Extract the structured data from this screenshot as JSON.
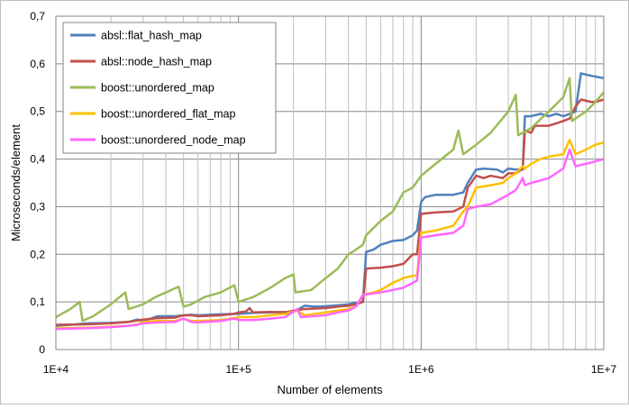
{
  "chart_data": {
    "type": "line",
    "title": "",
    "xlabel": "Number of elements",
    "ylabel": "Microseconds/element",
    "x_scale": "log",
    "xlim": [
      10000,
      10000000
    ],
    "ylim": [
      0,
      0.7
    ],
    "x_ticks": [
      {
        "value": 10000,
        "label": "1E+4"
      },
      {
        "value": 100000,
        "label": "1E+5"
      },
      {
        "value": 1000000,
        "label": "1E+6"
      },
      {
        "value": 10000000,
        "label": "1E+7"
      }
    ],
    "y_ticks": [
      {
        "value": 0,
        "label": "0"
      },
      {
        "value": 0.1,
        "label": "0,1"
      },
      {
        "value": 0.2,
        "label": "0,2"
      },
      {
        "value": 0.3,
        "label": "0,3"
      },
      {
        "value": 0.4,
        "label": "0,4"
      },
      {
        "value": 0.5,
        "label": "0,5"
      },
      {
        "value": 0.6,
        "label": "0,6"
      },
      {
        "value": 0.7,
        "label": "0,7"
      }
    ],
    "grid": true,
    "legend_position": "top-left",
    "series": [
      {
        "name": "absl::flat_hash_map",
        "color": "#4f81bd",
        "points": [
          [
            10000,
            0.05
          ],
          [
            12000,
            0.052
          ],
          [
            15000,
            0.055
          ],
          [
            20000,
            0.056
          ],
          [
            25000,
            0.058
          ],
          [
            28000,
            0.063
          ],
          [
            30000,
            0.06
          ],
          [
            33000,
            0.065
          ],
          [
            36000,
            0.07
          ],
          [
            45000,
            0.07
          ],
          [
            50000,
            0.072
          ],
          [
            55000,
            0.073
          ],
          [
            60000,
            0.072
          ],
          [
            70000,
            0.073
          ],
          [
            80000,
            0.074
          ],
          [
            100000,
            0.075
          ],
          [
            120000,
            0.077
          ],
          [
            150000,
            0.078
          ],
          [
            190000,
            0.079
          ],
          [
            210000,
            0.083
          ],
          [
            230000,
            0.092
          ],
          [
            260000,
            0.09
          ],
          [
            300000,
            0.091
          ],
          [
            350000,
            0.093
          ],
          [
            400000,
            0.095
          ],
          [
            440000,
            0.098
          ],
          [
            480000,
            0.1
          ],
          [
            500000,
            0.205
          ],
          [
            550000,
            0.21
          ],
          [
            600000,
            0.22
          ],
          [
            700000,
            0.228
          ],
          [
            800000,
            0.23
          ],
          [
            900000,
            0.24
          ],
          [
            950000,
            0.25
          ],
          [
            1000000,
            0.31
          ],
          [
            1050000,
            0.32
          ],
          [
            1200000,
            0.325
          ],
          [
            1500000,
            0.325
          ],
          [
            1700000,
            0.33
          ],
          [
            1800000,
            0.35
          ],
          [
            2000000,
            0.378
          ],
          [
            2200000,
            0.38
          ],
          [
            2600000,
            0.378
          ],
          [
            2800000,
            0.372
          ],
          [
            3000000,
            0.38
          ],
          [
            3300000,
            0.378
          ],
          [
            3600000,
            0.378
          ],
          [
            3700000,
            0.49
          ],
          [
            4000000,
            0.49
          ],
          [
            4500000,
            0.495
          ],
          [
            5000000,
            0.49
          ],
          [
            5500000,
            0.495
          ],
          [
            6000000,
            0.49
          ],
          [
            6500000,
            0.495
          ],
          [
            7000000,
            0.5
          ],
          [
            7500000,
            0.58
          ],
          [
            8500000,
            0.575
          ],
          [
            10000000,
            0.57
          ]
        ]
      },
      {
        "name": "absl::node_hash_map",
        "color": "#c0504d",
        "points": [
          [
            10000,
            0.052
          ],
          [
            15000,
            0.053
          ],
          [
            20000,
            0.055
          ],
          [
            25000,
            0.058
          ],
          [
            30000,
            0.063
          ],
          [
            36000,
            0.066
          ],
          [
            45000,
            0.067
          ],
          [
            50000,
            0.072
          ],
          [
            55000,
            0.072
          ],
          [
            60000,
            0.07
          ],
          [
            80000,
            0.072
          ],
          [
            95000,
            0.075
          ],
          [
            100000,
            0.078
          ],
          [
            110000,
            0.08
          ],
          [
            115000,
            0.087
          ],
          [
            120000,
            0.078
          ],
          [
            150000,
            0.079
          ],
          [
            180000,
            0.078
          ],
          [
            210000,
            0.083
          ],
          [
            230000,
            0.085
          ],
          [
            300000,
            0.087
          ],
          [
            350000,
            0.09
          ],
          [
            400000,
            0.092
          ],
          [
            440000,
            0.095
          ],
          [
            480000,
            0.1
          ],
          [
            500000,
            0.17
          ],
          [
            600000,
            0.172
          ],
          [
            700000,
            0.175
          ],
          [
            800000,
            0.18
          ],
          [
            900000,
            0.2
          ],
          [
            950000,
            0.2
          ],
          [
            1000000,
            0.285
          ],
          [
            1200000,
            0.288
          ],
          [
            1500000,
            0.29
          ],
          [
            1700000,
            0.3
          ],
          [
            1800000,
            0.34
          ],
          [
            2000000,
            0.365
          ],
          [
            2200000,
            0.36
          ],
          [
            2400000,
            0.365
          ],
          [
            2800000,
            0.36
          ],
          [
            3000000,
            0.37
          ],
          [
            3300000,
            0.37
          ],
          [
            3600000,
            0.38
          ],
          [
            3700000,
            0.46
          ],
          [
            4000000,
            0.455
          ],
          [
            4200000,
            0.47
          ],
          [
            5000000,
            0.47
          ],
          [
            5500000,
            0.475
          ],
          [
            6000000,
            0.48
          ],
          [
            6500000,
            0.485
          ],
          [
            7000000,
            0.51
          ],
          [
            7500000,
            0.525
          ],
          [
            8500000,
            0.52
          ],
          [
            9000000,
            0.52
          ],
          [
            10000000,
            0.525
          ]
        ]
      },
      {
        "name": "boost::unordered_map",
        "color": "#9bbb59",
        "points": [
          [
            10000,
            0.068
          ],
          [
            12000,
            0.085
          ],
          [
            13500,
            0.1
          ],
          [
            14000,
            0.06
          ],
          [
            16000,
            0.07
          ],
          [
            20000,
            0.095
          ],
          [
            24000,
            0.12
          ],
          [
            25000,
            0.085
          ],
          [
            30000,
            0.095
          ],
          [
            35000,
            0.11
          ],
          [
            40000,
            0.12
          ],
          [
            47000,
            0.132
          ],
          [
            50000,
            0.09
          ],
          [
            55000,
            0.095
          ],
          [
            65000,
            0.11
          ],
          [
            80000,
            0.12
          ],
          [
            95000,
            0.135
          ],
          [
            100000,
            0.1
          ],
          [
            120000,
            0.11
          ],
          [
            150000,
            0.13
          ],
          [
            180000,
            0.15
          ],
          [
            200000,
            0.158
          ],
          [
            205000,
            0.12
          ],
          [
            250000,
            0.125
          ],
          [
            300000,
            0.15
          ],
          [
            350000,
            0.17
          ],
          [
            400000,
            0.2
          ],
          [
            440000,
            0.21
          ],
          [
            480000,
            0.22
          ],
          [
            500000,
            0.24
          ],
          [
            600000,
            0.27
          ],
          [
            700000,
            0.29
          ],
          [
            800000,
            0.33
          ],
          [
            900000,
            0.34
          ],
          [
            1000000,
            0.365
          ],
          [
            1200000,
            0.39
          ],
          [
            1500000,
            0.42
          ],
          [
            1600000,
            0.46
          ],
          [
            1700000,
            0.41
          ],
          [
            2000000,
            0.43
          ],
          [
            2400000,
            0.455
          ],
          [
            3000000,
            0.5
          ],
          [
            3300000,
            0.535
          ],
          [
            3400000,
            0.45
          ],
          [
            4000000,
            0.465
          ],
          [
            5000000,
            0.5
          ],
          [
            6000000,
            0.53
          ],
          [
            6500000,
            0.57
          ],
          [
            6700000,
            0.48
          ],
          [
            7000000,
            0.485
          ],
          [
            8000000,
            0.5
          ],
          [
            9000000,
            0.52
          ],
          [
            10000000,
            0.54
          ]
        ]
      },
      {
        "name": "boost::unordered_flat_map",
        "color": "#ffc000",
        "points": [
          [
            10000,
            0.045
          ],
          [
            15000,
            0.046
          ],
          [
            20000,
            0.048
          ],
          [
            25000,
            0.05
          ],
          [
            28000,
            0.053
          ],
          [
            30000,
            0.058
          ],
          [
            36000,
            0.06
          ],
          [
            45000,
            0.06
          ],
          [
            50000,
            0.065
          ],
          [
            55000,
            0.06
          ],
          [
            60000,
            0.06
          ],
          [
            80000,
            0.062
          ],
          [
            95000,
            0.066
          ],
          [
            100000,
            0.068
          ],
          [
            120000,
            0.068
          ],
          [
            150000,
            0.072
          ],
          [
            180000,
            0.075
          ],
          [
            210000,
            0.082
          ],
          [
            230000,
            0.072
          ],
          [
            300000,
            0.078
          ],
          [
            350000,
            0.082
          ],
          [
            400000,
            0.085
          ],
          [
            440000,
            0.09
          ],
          [
            480000,
            0.115
          ],
          [
            550000,
            0.12
          ],
          [
            600000,
            0.125
          ],
          [
            700000,
            0.14
          ],
          [
            800000,
            0.15
          ],
          [
            900000,
            0.155
          ],
          [
            950000,
            0.155
          ],
          [
            1000000,
            0.245
          ],
          [
            1200000,
            0.25
          ],
          [
            1500000,
            0.26
          ],
          [
            1700000,
            0.29
          ],
          [
            1800000,
            0.3
          ],
          [
            2000000,
            0.34
          ],
          [
            2400000,
            0.345
          ],
          [
            2800000,
            0.35
          ],
          [
            3000000,
            0.36
          ],
          [
            3300000,
            0.37
          ],
          [
            3600000,
            0.385
          ],
          [
            3700000,
            0.38
          ],
          [
            4000000,
            0.39
          ],
          [
            4500000,
            0.4
          ],
          [
            5000000,
            0.405
          ],
          [
            6000000,
            0.41
          ],
          [
            6500000,
            0.44
          ],
          [
            7000000,
            0.41
          ],
          [
            8000000,
            0.42
          ],
          [
            9000000,
            0.43
          ],
          [
            10000000,
            0.435
          ]
        ]
      },
      {
        "name": "boost::unordered_node_map",
        "color": "#ff66ff",
        "points": [
          [
            10000,
            0.043
          ],
          [
            15000,
            0.045
          ],
          [
            20000,
            0.047
          ],
          [
            25000,
            0.05
          ],
          [
            28000,
            0.052
          ],
          [
            30000,
            0.055
          ],
          [
            36000,
            0.057
          ],
          [
            45000,
            0.058
          ],
          [
            50000,
            0.065
          ],
          [
            55000,
            0.058
          ],
          [
            60000,
            0.057
          ],
          [
            80000,
            0.06
          ],
          [
            95000,
            0.065
          ],
          [
            100000,
            0.062
          ],
          [
            120000,
            0.062
          ],
          [
            150000,
            0.065
          ],
          [
            180000,
            0.068
          ],
          [
            210000,
            0.085
          ],
          [
            220000,
            0.068
          ],
          [
            300000,
            0.072
          ],
          [
            350000,
            0.078
          ],
          [
            400000,
            0.082
          ],
          [
            440000,
            0.09
          ],
          [
            480000,
            0.115
          ],
          [
            550000,
            0.118
          ],
          [
            600000,
            0.12
          ],
          [
            700000,
            0.125
          ],
          [
            800000,
            0.13
          ],
          [
            900000,
            0.14
          ],
          [
            950000,
            0.145
          ],
          [
            1000000,
            0.235
          ],
          [
            1200000,
            0.24
          ],
          [
            1500000,
            0.245
          ],
          [
            1700000,
            0.26
          ],
          [
            1800000,
            0.295
          ],
          [
            2000000,
            0.3
          ],
          [
            2400000,
            0.305
          ],
          [
            3000000,
            0.325
          ],
          [
            3300000,
            0.335
          ],
          [
            3600000,
            0.36
          ],
          [
            3700000,
            0.345
          ],
          [
            4000000,
            0.35
          ],
          [
            4500000,
            0.355
          ],
          [
            5000000,
            0.36
          ],
          [
            6000000,
            0.38
          ],
          [
            6500000,
            0.42
          ],
          [
            7000000,
            0.385
          ],
          [
            8000000,
            0.39
          ],
          [
            9000000,
            0.395
          ],
          [
            10000000,
            0.4
          ]
        ]
      }
    ]
  }
}
